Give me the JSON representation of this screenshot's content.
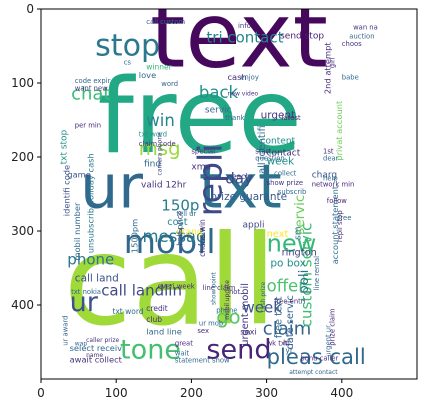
{
  "chart_data": {
    "type": "image",
    "title": "",
    "xlabel": "",
    "ylabel": "",
    "xlim": [
      0,
      500
    ],
    "ylim": [
      500,
      0
    ],
    "xticks": [
      0,
      100,
      200,
      300,
      400
    ],
    "yticks": [
      0,
      100,
      200,
      300,
      400
    ],
    "grid": false,
    "colormap": "viridis",
    "words": [
      {
        "text": "call",
        "x": 30,
        "y": 425,
        "size": 165,
        "color": "#a0da39",
        "rot": 0
      },
      {
        "text": "free",
        "x": 75,
        "y": 193,
        "size": 138,
        "color": "#22a884",
        "rot": 0
      },
      {
        "text": "text",
        "x": 145,
        "y": 78,
        "size": 120,
        "color": "#46085c",
        "rot": 0
      },
      {
        "text": "ur",
        "x": 52,
        "y": 268,
        "size": 80,
        "color": "#31688e",
        "rot": 0
      },
      {
        "text": "txt",
        "x": 210,
        "y": 268,
        "size": 80,
        "color": "#2c728e",
        "rot": 0
      },
      {
        "text": "repli",
        "x": 240,
        "y": 280,
        "size": 44,
        "color": "#3e4989",
        "rot": -90
      },
      {
        "text": "mobil",
        "x": 110,
        "y": 330,
        "size": 44,
        "color": "#30678d",
        "rot": 0
      },
      {
        "text": "stop",
        "x": 72,
        "y": 63,
        "size": 40,
        "color": "#2a788e",
        "rot": 0
      },
      {
        "text": "tone",
        "x": 105,
        "y": 472,
        "size": 36,
        "color": "#44bf70",
        "rot": 0
      },
      {
        "text": "send",
        "x": 220,
        "y": 472,
        "size": 36,
        "color": "#482576",
        "rot": 0
      },
      {
        "text": "new",
        "x": 300,
        "y": 328,
        "size": 32,
        "color": "#35b779",
        "rot": 0
      },
      {
        "text": "pleas call",
        "x": 300,
        "y": 480,
        "size": 28,
        "color": "#31688e",
        "rot": 0
      },
      {
        "text": "ur",
        "x": 38,
        "y": 408,
        "size": 36,
        "color": "#3b528b",
        "rot": 0
      },
      {
        "text": "chat",
        "x": 40,
        "y": 122,
        "size": 24,
        "color": "#3cbc75",
        "rot": 0
      },
      {
        "text": "msg",
        "x": 130,
        "y": 197,
        "size": 26,
        "color": "#9bd93c",
        "rot": 0
      },
      {
        "text": "win",
        "x": 140,
        "y": 158,
        "size": 22,
        "color": "#25848e",
        "rot": 0
      },
      {
        "text": "back",
        "x": 210,
        "y": 120,
        "size": 22,
        "color": "#21918c",
        "rot": 0
      },
      {
        "text": "tri contact",
        "x": 220,
        "y": 45,
        "size": 20,
        "color": "#25858e",
        "rot": 0
      },
      {
        "text": "messag",
        "x": 135,
        "y": 315,
        "size": 22,
        "color": "#2a788e",
        "rot": 0
      },
      {
        "text": "150p",
        "x": 160,
        "y": 272,
        "size": 20,
        "color": "#287d8e",
        "rot": 0
      },
      {
        "text": "week",
        "x": 268,
        "y": 410,
        "size": 20,
        "color": "#3b528b",
        "rot": 0
      },
      {
        "text": "claim",
        "x": 295,
        "y": 440,
        "size": 24,
        "color": "#32658e",
        "rot": 0
      },
      {
        "text": "call landlin",
        "x": 80,
        "y": 387,
        "size": 20,
        "color": "#3e4a89",
        "rot": 0
      },
      {
        "text": "offer",
        "x": 300,
        "y": 382,
        "size": 22,
        "color": "#4ac16d",
        "rot": 0
      },
      {
        "text": "custom servic",
        "x": 360,
        "y": 430,
        "size": 20,
        "color": "#3fbc73",
        "rot": -90
      },
      {
        "text": "poli",
        "x": 355,
        "y": 385,
        "size": 18,
        "color": "#2d708e",
        "rot": -90
      },
      {
        "text": "go",
        "x": 233,
        "y": 425,
        "size": 26,
        "color": "#56c667",
        "rot": 0
      },
      {
        "text": "phone",
        "x": 35,
        "y": 345,
        "size": 20,
        "color": "#2a768e",
        "rot": 0
      },
      {
        "text": "day",
        "x": 245,
        "y": 236,
        "size": 20,
        "color": "#414487",
        "rot": 0
      },
      {
        "text": "prize guarante",
        "x": 225,
        "y": 258,
        "size": 14,
        "color": "#375b8d",
        "rot": 0
      },
      {
        "text": "servic",
        "x": 350,
        "y": 305,
        "size": 18,
        "color": "#6ccd5a",
        "rot": -90
      },
      {
        "text": "po box",
        "x": 305,
        "y": 348,
        "size": 14,
        "color": "#238a8d",
        "rot": 0
      },
      {
        "text": "call land",
        "x": 45,
        "y": 368,
        "size": 14,
        "color": "#3b528b",
        "rot": 0
      },
      {
        "text": "urgent mobil",
        "x": 275,
        "y": 455,
        "size": 13,
        "color": "#443983",
        "rot": -90
      },
      {
        "text": "free text",
        "x": 320,
        "y": 445,
        "size": 13,
        "color": "#31688e",
        "rot": -90
      },
      {
        "text": "date servic",
        "x": 335,
        "y": 460,
        "size": 13,
        "color": "#32648e",
        "rot": -90
      },
      {
        "text": "rington",
        "x": 320,
        "y": 333,
        "size": 13,
        "color": "#433e85",
        "rot": 0
      },
      {
        "text": "cost",
        "x": 168,
        "y": 292,
        "size": 13,
        "color": "#23898e",
        "rot": 0
      },
      {
        "text": "appli",
        "x": 268,
        "y": 295,
        "size": 12,
        "color": "#3f4889",
        "rot": 0
      },
      {
        "text": "next",
        "x": 300,
        "y": 308,
        "size": 13,
        "color": "#fde725",
        "rot": 0
      },
      {
        "text": "sm",
        "x": 345,
        "y": 312,
        "size": 12,
        "color": "#2d718e",
        "rot": -90
      },
      {
        "text": "urgent",
        "x": 292,
        "y": 148,
        "size": 14,
        "color": "#443a83",
        "rot": 0
      },
      {
        "text": "content",
        "x": 292,
        "y": 182,
        "size": 12,
        "color": "#238a8d",
        "rot": 0
      },
      {
        "text": "charg",
        "x": 360,
        "y": 228,
        "size": 12,
        "color": "#3a548c",
        "rot": 0
      },
      {
        "text": "week",
        "x": 300,
        "y": 210,
        "size": 14,
        "color": "#21918c",
        "rot": 0
      },
      {
        "text": "contact",
        "x": 300,
        "y": 198,
        "size": 12,
        "color": "#482979",
        "rot": 0
      },
      {
        "text": "send stop",
        "x": 318,
        "y": 40,
        "size": 12,
        "color": "#482374",
        "rot": 0
      },
      {
        "text": "2nd attempt",
        "x": 385,
        "y": 115,
        "size": 11,
        "color": "#472f7d",
        "rot": -90
      },
      {
        "text": "privat account",
        "x": 400,
        "y": 205,
        "size": 11,
        "color": "#6ece58",
        "rot": -90
      },
      {
        "text": "account statement",
        "x": 395,
        "y": 345,
        "size": 11,
        "color": "#2e6e8e",
        "rot": -90
      },
      {
        "text": "xma",
        "x": 200,
        "y": 217,
        "size": 12,
        "color": "#46337e",
        "rot": 0
      },
      {
        "text": "txt stop",
        "x": 34,
        "y": 210,
        "size": 12,
        "color": "#21918c",
        "rot": -90
      },
      {
        "text": "unsubscrib holiday cash",
        "x": 70,
        "y": 330,
        "size": 11,
        "color": "#2a788e",
        "rot": -90
      },
      {
        "text": "identifi code",
        "x": 38,
        "y": 280,
        "size": 11,
        "color": "#3b528b",
        "rot": -90
      },
      {
        "text": "mobil number",
        "x": 52,
        "y": 340,
        "size": 11,
        "color": "#31688e",
        "rot": -90
      },
      {
        "text": "valid 12hr",
        "x": 133,
        "y": 241,
        "size": 12,
        "color": "#46337e",
        "rot": 0
      },
      {
        "text": "call identifi",
        "x": 298,
        "y": 230,
        "size": 13,
        "color": "#2c728e",
        "rot": -90
      },
      {
        "text": "orang",
        "x": 180,
        "y": 305,
        "size": 12,
        "color": "#fde725",
        "rot": 0
      },
      {
        "text": "half price",
        "x": 188,
        "y": 320,
        "size": 10,
        "color": "#3b528b",
        "rot": -90
      },
      {
        "text": "1500pm",
        "x": 128,
        "y": 330,
        "size": 11,
        "color": "#31688e",
        "rot": -90
      },
      {
        "text": "chanc win",
        "x": 218,
        "y": 335,
        "size": 10,
        "color": "#46337e",
        "rot": -90
      },
      {
        "text": "reach",
        "x": 250,
        "y": 230,
        "size": 10,
        "color": "#414487",
        "rot": 0
      },
      {
        "text": "game",
        "x": 35,
        "y": 228,
        "size": 11,
        "color": "#3b528b",
        "rot": 0
      },
      {
        "text": "find",
        "x": 137,
        "y": 213,
        "size": 12,
        "color": "#31688e",
        "rot": 0
      },
      {
        "text": "claim code",
        "x": 130,
        "y": 185,
        "size": 9,
        "color": "#46337e",
        "rot": 0
      },
      {
        "text": "love",
        "x": 130,
        "y": 93,
        "size": 11,
        "color": "#31688e",
        "rot": 0
      },
      {
        "text": "servic",
        "x": 218,
        "y": 140,
        "size": 12,
        "color": "#31688e",
        "rot": 0
      },
      {
        "text": "winner",
        "x": 140,
        "y": 82,
        "size": 10,
        "color": "#35b779",
        "rot": 0
      },
      {
        "text": "cash",
        "x": 248,
        "y": 96,
        "size": 11,
        "color": "#482979",
        "rot": 0
      },
      {
        "text": "word",
        "x": 160,
        "y": 104,
        "size": 9,
        "color": "#31688e",
        "rot": 0
      },
      {
        "text": "txt word",
        "x": 130,
        "y": 172,
        "size": 9,
        "color": "#21918c",
        "rot": 0
      },
      {
        "text": "camera phone",
        "x": 160,
        "y": 225,
        "size": 8,
        "color": "#414487",
        "rot": -90
      },
      {
        "text": "special",
        "x": 200,
        "y": 195,
        "size": 9,
        "color": "#46337e",
        "rot": 0
      },
      {
        "text": "network min",
        "x": 360,
        "y": 240,
        "size": 9,
        "color": "#482979",
        "rot": 0
      },
      {
        "text": "help",
        "x": 375,
        "y": 232,
        "size": 9,
        "color": "#31688e",
        "rot": 0
      },
      {
        "text": "show prize",
        "x": 300,
        "y": 238,
        "size": 9,
        "color": "#46337e",
        "rot": 0
      },
      {
        "text": "subscrib",
        "x": 315,
        "y": 250,
        "size": 9,
        "color": "#31688e",
        "rot": 0
      },
      {
        "text": "follow",
        "x": 380,
        "y": 262,
        "size": 9,
        "color": "#482979",
        "rot": 0
      },
      {
        "text": "question",
        "x": 285,
        "y": 205,
        "size": 9,
        "color": "#31688e",
        "rot": 0
      },
      {
        "text": "start",
        "x": 285,
        "y": 195,
        "size": 9,
        "color": "#46337e",
        "rot": 0
      },
      {
        "text": "collect",
        "x": 310,
        "y": 225,
        "size": 9,
        "color": "#31688e",
        "rot": 0
      },
      {
        "text": "1st",
        "x": 375,
        "y": 195,
        "size": 9,
        "color": "#482979",
        "rot": 0
      },
      {
        "text": "dear",
        "x": 375,
        "y": 205,
        "size": 9,
        "color": "#31688e",
        "rot": 0
      },
      {
        "text": "choos",
        "x": 400,
        "y": 50,
        "size": 9,
        "color": "#46337e",
        "rot": 0
      },
      {
        "text": "babe",
        "x": 400,
        "y": 95,
        "size": 9,
        "color": "#31688e",
        "rot": 0
      },
      {
        "text": "girl",
        "x": 390,
        "y": 80,
        "size": 9,
        "color": "#482979",
        "rot": -90
      },
      {
        "text": "auction",
        "x": 410,
        "y": 40,
        "size": 9,
        "color": "#31688e",
        "rot": 0
      },
      {
        "text": "wan na",
        "x": 415,
        "y": 28,
        "size": 9,
        "color": "#46337e",
        "rot": 0
      },
      {
        "text": "thank",
        "x": 245,
        "y": 150,
        "size": 9,
        "color": "#31688e",
        "rot": 0
      },
      {
        "text": "new video",
        "x": 248,
        "y": 117,
        "size": 8,
        "color": "#46337e",
        "rot": 0
      },
      {
        "text": "enjoy",
        "x": 265,
        "y": 95,
        "size": 9,
        "color": "#31688e",
        "rot": 0
      },
      {
        "text": "want new",
        "x": 45,
        "y": 110,
        "size": 9,
        "color": "#46337e",
        "rot": 0
      },
      {
        "text": "code expir",
        "x": 45,
        "y": 100,
        "size": 9,
        "color": "#31688e",
        "rot": 0
      },
      {
        "text": "per min",
        "x": 45,
        "y": 160,
        "size": 9,
        "color": "#482979",
        "rot": 0
      },
      {
        "text": "call custom",
        "x": 140,
        "y": 20,
        "size": 9,
        "color": "#31688e",
        "rot": 0
      },
      {
        "text": "info",
        "x": 262,
        "y": 26,
        "size": 9,
        "color": "#46337e",
        "rot": 0
      },
      {
        "text": "cs",
        "x": 110,
        "y": 75,
        "size": 9,
        "color": "#31688e",
        "rot": 0
      },
      {
        "text": "latest",
        "x": 320,
        "y": 150,
        "size": 9,
        "color": "#482979",
        "rot": 0
      },
      {
        "text": "tell ur",
        "x": 180,
        "y": 280,
        "size": 9,
        "color": "#31688e",
        "rot": 0
      },
      {
        "text": "line claim",
        "x": 215,
        "y": 380,
        "size": 9,
        "color": "#46337e",
        "rot": 0
      },
      {
        "text": "show point",
        "x": 232,
        "y": 400,
        "size": 8,
        "color": "#31688e",
        "rot": -90
      },
      {
        "text": "mobil update",
        "x": 250,
        "y": 420,
        "size": 8,
        "color": "#482979",
        "rot": -90
      },
      {
        "text": "phone",
        "x": 233,
        "y": 410,
        "size": 9,
        "color": "#31688e",
        "rot": 0
      },
      {
        "text": "hot",
        "x": 250,
        "y": 385,
        "size": 9,
        "color": "#46337e",
        "rot": 0
      },
      {
        "text": "cash prize",
        "x": 298,
        "y": 410,
        "size": 8,
        "color": "#31688e",
        "rot": -90
      },
      {
        "text": "free entri",
        "x": 310,
        "y": 398,
        "size": 9,
        "color": "#46337e",
        "rot": 0
      },
      {
        "text": "txt nokia",
        "x": 40,
        "y": 385,
        "size": 9,
        "color": "#31688e",
        "rot": 0
      },
      {
        "text": "everi week",
        "x": 155,
        "y": 378,
        "size": 9,
        "color": "#482979",
        "rot": 0
      },
      {
        "text": "txt word",
        "x": 95,
        "y": 412,
        "size": 10,
        "color": "#31688e",
        "rot": 0
      },
      {
        "text": "credit",
        "x": 140,
        "y": 408,
        "size": 10,
        "color": "#46337e",
        "rot": 0
      },
      {
        "text": "club",
        "x": 140,
        "y": 423,
        "size": 10,
        "color": "#482979",
        "rot": 0
      },
      {
        "text": "land line",
        "x": 140,
        "y": 440,
        "size": 11,
        "color": "#31688e",
        "rot": 0
      },
      {
        "text": "sexi",
        "x": 265,
        "y": 440,
        "size": 11,
        "color": "#46337e",
        "rot": 0
      },
      {
        "text": "ur mob",
        "x": 210,
        "y": 428,
        "size": 9,
        "color": "#31688e",
        "rot": 0
      },
      {
        "text": "sex",
        "x": 208,
        "y": 438,
        "size": 9,
        "color": "#482979",
        "rot": 0
      },
      {
        "text": "select receiv",
        "x": 38,
        "y": 462,
        "size": 11,
        "color": "#31688e",
        "rot": 0
      },
      {
        "text": "await collect",
        "x": 38,
        "y": 478,
        "size": 11,
        "color": "#46337e",
        "rot": 0
      },
      {
        "text": "statement show",
        "x": 178,
        "y": 478,
        "size": 9,
        "color": "#31688e",
        "rot": 0
      },
      {
        "text": "bonu caller",
        "x": 345,
        "y": 475,
        "size": 9,
        "color": "#482979",
        "rot": 0
      },
      {
        "text": "attempt contact",
        "x": 330,
        "y": 493,
        "size": 8,
        "color": "#31688e",
        "rot": 0
      },
      {
        "text": "caller prize",
        "x": 60,
        "y": 450,
        "size": 8,
        "color": "#46337e",
        "rot": 0
      },
      {
        "text": "ur award",
        "x": 35,
        "y": 455,
        "size": 9,
        "color": "#31688e",
        "rot": -90
      },
      {
        "text": "wk txt",
        "x": 300,
        "y": 455,
        "size": 9,
        "color": "#482979",
        "rot": 0
      },
      {
        "text": "yr",
        "x": 325,
        "y": 465,
        "size": 10,
        "color": "#31688e",
        "rot": 0
      },
      {
        "text": "hi",
        "x": 322,
        "y": 455,
        "size": 10,
        "color": "#46337e",
        "rot": 0
      },
      {
        "text": "line rental",
        "x": 370,
        "y": 380,
        "size": 9,
        "color": "#31688e",
        "rot": -90
      },
      {
        "text": "prize claim",
        "x": 390,
        "y": 455,
        "size": 9,
        "color": "#482979",
        "rot": -90
      },
      {
        "text": "urgent ur",
        "x": 385,
        "y": 470,
        "size": 9,
        "color": "#31688e",
        "rot": -90
      },
      {
        "text": "repli stop",
        "x": 400,
        "y": 315,
        "size": 9,
        "color": "#46337e",
        "rot": -90
      },
      {
        "text": "free",
        "x": 395,
        "y": 285,
        "size": 9,
        "color": "#31688e",
        "rot": 0
      },
      {
        "text": "great",
        "x": 178,
        "y": 455,
        "size": 9,
        "color": "#482979",
        "rot": 0
      },
      {
        "text": "wait",
        "x": 178,
        "y": 468,
        "size": 9,
        "color": "#31688e",
        "rot": 0
      },
      {
        "text": "name",
        "x": 60,
        "y": 470,
        "size": 8,
        "color": "#46337e",
        "rot": 0
      },
      {
        "text": "wap",
        "x": 45,
        "y": 455,
        "size": 8,
        "color": "#31688e",
        "rot": 0
      }
    ]
  }
}
